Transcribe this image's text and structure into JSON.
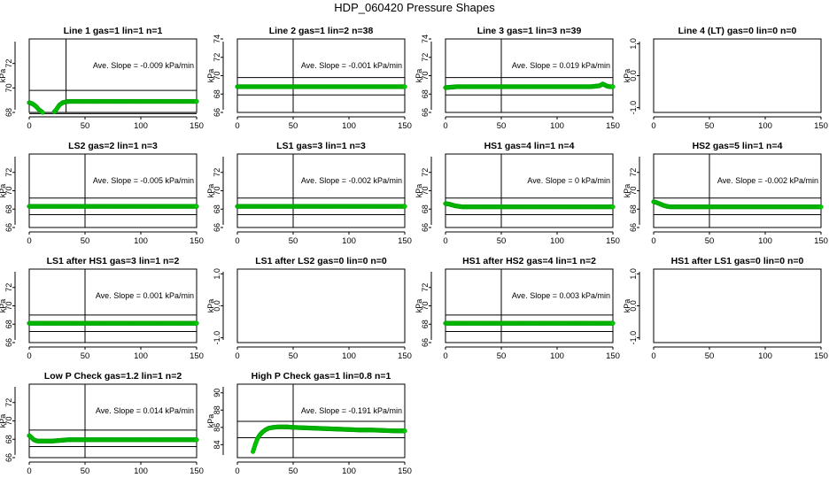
{
  "title": "HDP_060420  Pressure Shapes",
  "colors": {
    "data": "#00cc00",
    "axis": "#000000"
  },
  "chart_data": [
    {
      "type": "line",
      "title": "Line 1 gas=1 lin=1 n=1",
      "ylabel": "kPa",
      "xlim": [
        0,
        150
      ],
      "ylim": [
        68,
        74
      ],
      "yticks": [
        "68",
        "70",
        "72"
      ],
      "xticks": [
        "0",
        "50",
        "100",
        "150"
      ],
      "slope_text": "Ave. Slope =  -0.009  kPa/min",
      "hlines": [
        69.8,
        67.9
      ],
      "vline": 33,
      "series": {
        "x": [
          0,
          3,
          6,
          9,
          12,
          15,
          18,
          21,
          24,
          27,
          30,
          35,
          40,
          50,
          60,
          70,
          80,
          90,
          100,
          110,
          120,
          130,
          140,
          150
        ],
        "y": [
          68.8,
          68.7,
          68.5,
          68.2,
          68.0,
          67.9,
          67.9,
          67.9,
          68.2,
          68.6,
          68.8,
          68.9,
          68.9,
          68.9,
          68.9,
          68.9,
          68.9,
          68.9,
          68.9,
          68.9,
          68.9,
          68.9,
          68.9,
          68.9
        ]
      }
    },
    {
      "type": "line",
      "title": "Line 2 gas=1 lin=2 n=38",
      "ylabel": "kPa",
      "xlim": [
        0,
        150
      ],
      "ylim": [
        66,
        74
      ],
      "yticks": [
        "66",
        "68",
        "70",
        "72",
        "74"
      ],
      "xticks": [
        "0",
        "50",
        "100",
        "150"
      ],
      "slope_text": "Ave. Slope =  -0.001  kPa/min",
      "hlines": [
        69.8,
        67.9
      ],
      "vline": 50,
      "series": {
        "x": [
          0,
          10,
          20,
          30,
          40,
          50,
          60,
          70,
          80,
          90,
          100,
          110,
          120,
          130,
          140,
          150
        ],
        "y": [
          68.8,
          68.8,
          68.8,
          68.8,
          68.8,
          68.8,
          68.8,
          68.8,
          68.8,
          68.8,
          68.8,
          68.8,
          68.8,
          68.8,
          68.8,
          68.8
        ]
      }
    },
    {
      "type": "line",
      "title": "Line 3 gas=1 lin=3 n=39",
      "ylabel": "kPa",
      "xlim": [
        0,
        150
      ],
      "ylim": [
        66,
        74
      ],
      "yticks": [
        "66",
        "68",
        "70",
        "72",
        "74"
      ],
      "xticks": [
        "0",
        "50",
        "100",
        "150"
      ],
      "slope_text": "Ave. Slope =  0.019  kPa/min",
      "hlines": [
        69.8,
        67.9
      ],
      "vline": 50,
      "series": {
        "x": [
          0,
          10,
          20,
          30,
          40,
          50,
          60,
          70,
          80,
          90,
          100,
          110,
          120,
          130,
          138,
          141,
          144,
          147,
          150
        ],
        "y": [
          68.7,
          68.8,
          68.8,
          68.8,
          68.8,
          68.8,
          68.8,
          68.8,
          68.8,
          68.8,
          68.8,
          68.8,
          68.8,
          68.8,
          68.9,
          69.1,
          68.9,
          68.8,
          68.8
        ]
      }
    },
    {
      "type": "line",
      "title": "Line 4 (LT) gas=0 lin=0 n=0",
      "ylabel": "kPa",
      "xlim": [
        0,
        150
      ],
      "ylim": [
        -1.15,
        1.15
      ],
      "yticks": [
        "-1.0",
        "0.0",
        "1.0"
      ],
      "xticks": [
        "0",
        "50",
        "100",
        "150"
      ],
      "slope_text": "",
      "hlines": [],
      "vline": null,
      "series": {
        "x": [],
        "y": []
      }
    },
    {
      "type": "line",
      "title": "LS2 gas=2 lin=1 n=3",
      "ylabel": "kPa",
      "xlim": [
        0,
        150
      ],
      "ylim": [
        66,
        74
      ],
      "yticks": [
        "66",
        "68",
        "70",
        "72"
      ],
      "xticks": [
        "0",
        "50",
        "100",
        "150"
      ],
      "slope_text": "Ave. Slope =  -0.005  kPa/min",
      "hlines": [
        69.2,
        67.4
      ],
      "vline": 50,
      "series": {
        "x": [
          0,
          10,
          20,
          30,
          40,
          50,
          60,
          70,
          80,
          90,
          100,
          110,
          120,
          130,
          140,
          150
        ],
        "y": [
          68.3,
          68.3,
          68.3,
          68.3,
          68.3,
          68.3,
          68.3,
          68.3,
          68.3,
          68.3,
          68.3,
          68.3,
          68.3,
          68.3,
          68.3,
          68.3
        ]
      }
    },
    {
      "type": "line",
      "title": "LS1 gas=3 lin=1 n=3",
      "ylabel": "kPa",
      "xlim": [
        0,
        150
      ],
      "ylim": [
        66,
        74
      ],
      "yticks": [
        "66",
        "68",
        "70",
        "72"
      ],
      "xticks": [
        "0",
        "50",
        "100",
        "150"
      ],
      "slope_text": "Ave. Slope =  -0.002  kPa/min",
      "hlines": [
        69.2,
        67.4
      ],
      "vline": 50,
      "series": {
        "x": [
          0,
          10,
          20,
          30,
          40,
          50,
          60,
          70,
          80,
          90,
          100,
          110,
          120,
          130,
          140,
          150
        ],
        "y": [
          68.3,
          68.3,
          68.3,
          68.3,
          68.3,
          68.3,
          68.3,
          68.3,
          68.3,
          68.3,
          68.3,
          68.3,
          68.3,
          68.3,
          68.3,
          68.3
        ]
      }
    },
    {
      "type": "line",
      "title": "HS1 gas=4 lin=1 n=4",
      "ylabel": "kPa",
      "xlim": [
        0,
        150
      ],
      "ylim": [
        66,
        74
      ],
      "yticks": [
        "66",
        "68",
        "70",
        "72"
      ],
      "xticks": [
        "0",
        "50",
        "100",
        "150"
      ],
      "slope_text": "Ave. Slope =  0  kPa/min",
      "hlines": [
        69.2,
        67.4
      ],
      "vline": 50,
      "series": {
        "x": [
          0,
          3,
          6,
          9,
          12,
          15,
          20,
          30,
          40,
          50,
          60,
          70,
          80,
          90,
          100,
          110,
          120,
          130,
          140,
          150
        ],
        "y": [
          68.6,
          68.55,
          68.45,
          68.35,
          68.3,
          68.25,
          68.25,
          68.25,
          68.25,
          68.25,
          68.25,
          68.25,
          68.25,
          68.25,
          68.25,
          68.25,
          68.25,
          68.25,
          68.25,
          68.25
        ]
      }
    },
    {
      "type": "line",
      "title": "HS2 gas=5 lin=1 n=4",
      "ylabel": "kPa",
      "xlim": [
        0,
        150
      ],
      "ylim": [
        66,
        74
      ],
      "yticks": [
        "66",
        "68",
        "70",
        "72"
      ],
      "xticks": [
        "0",
        "50",
        "100",
        "150"
      ],
      "slope_text": "Ave. Slope =  -0.002  kPa/min",
      "hlines": [
        69.2,
        67.4
      ],
      "vline": 50,
      "series": {
        "x": [
          0,
          3,
          6,
          9,
          12,
          15,
          20,
          30,
          40,
          50,
          60,
          70,
          80,
          90,
          100,
          110,
          120,
          130,
          140,
          150
        ],
        "y": [
          68.8,
          68.7,
          68.55,
          68.4,
          68.3,
          68.25,
          68.25,
          68.25,
          68.25,
          68.25,
          68.25,
          68.25,
          68.25,
          68.25,
          68.25,
          68.25,
          68.25,
          68.25,
          68.25,
          68.25
        ]
      }
    },
    {
      "type": "line",
      "title": "LS1 after HS1 gas=3 lin=1 n=2",
      "ylabel": "kPa",
      "xlim": [
        0,
        150
      ],
      "ylim": [
        66,
        74
      ],
      "yticks": [
        "66",
        "68",
        "70",
        "72"
      ],
      "xticks": [
        "0",
        "50",
        "100",
        "150"
      ],
      "slope_text": "Ave. Slope =  0.001  kPa/min",
      "hlines": [
        69.0,
        67.2
      ],
      "vline": 50,
      "series": {
        "x": [
          0,
          10,
          20,
          30,
          40,
          50,
          60,
          70,
          80,
          90,
          100,
          110,
          120,
          130,
          140,
          150
        ],
        "y": [
          68.1,
          68.1,
          68.1,
          68.1,
          68.1,
          68.1,
          68.1,
          68.1,
          68.1,
          68.1,
          68.1,
          68.1,
          68.1,
          68.1,
          68.1,
          68.1
        ]
      }
    },
    {
      "type": "line",
      "title": "LS1 after LS2 gas=0 lin=0 n=0",
      "ylabel": "kPa",
      "xlim": [
        0,
        150
      ],
      "ylim": [
        -1.15,
        1.15
      ],
      "yticks": [
        "-1.0",
        "0.0",
        "1.0"
      ],
      "xticks": [
        "0",
        "50",
        "100",
        "150"
      ],
      "slope_text": "",
      "hlines": [],
      "vline": null,
      "series": {
        "x": [],
        "y": []
      }
    },
    {
      "type": "line",
      "title": "HS1 after HS2 gas=4 lin=1 n=2",
      "ylabel": "kPa",
      "xlim": [
        0,
        150
      ],
      "ylim": [
        66,
        74
      ],
      "yticks": [
        "66",
        "68",
        "70",
        "72"
      ],
      "xticks": [
        "0",
        "50",
        "100",
        "150"
      ],
      "slope_text": "Ave. Slope =  0.003  kPa/min",
      "hlines": [
        69.0,
        67.2
      ],
      "vline": 50,
      "series": {
        "x": [
          0,
          10,
          20,
          30,
          40,
          50,
          60,
          70,
          80,
          90,
          100,
          110,
          120,
          130,
          140,
          150
        ],
        "y": [
          68.1,
          68.1,
          68.1,
          68.1,
          68.1,
          68.1,
          68.1,
          68.1,
          68.1,
          68.1,
          68.1,
          68.1,
          68.1,
          68.1,
          68.1,
          68.1
        ]
      }
    },
    {
      "type": "line",
      "title": "HS1 after LS1 gas=0 lin=0 n=0",
      "ylabel": "kPa",
      "xlim": [
        0,
        150
      ],
      "ylim": [
        -1.15,
        1.15
      ],
      "yticks": [
        "-1.0",
        "0.0",
        "1.0"
      ],
      "xticks": [
        "0",
        "50",
        "100",
        "150"
      ],
      "slope_text": "",
      "hlines": [],
      "vline": null,
      "series": {
        "x": [],
        "y": []
      }
    },
    {
      "type": "line",
      "title": "Low P Check gas=1.2 lin=1 n=2",
      "ylabel": "kPa",
      "xlim": [
        0,
        150
      ],
      "ylim": [
        66,
        74
      ],
      "yticks": [
        "66",
        "68",
        "70",
        "72"
      ],
      "xticks": [
        "0",
        "50",
        "100",
        "150"
      ],
      "slope_text": "Ave. Slope =  0.014  kPa/min",
      "hlines": [
        69.0,
        67.2
      ],
      "vline": 50,
      "series": {
        "x": [
          0,
          2,
          4,
          6,
          8,
          10,
          15,
          20,
          25,
          30,
          35,
          40,
          50,
          60,
          70,
          80,
          90,
          100,
          110,
          120,
          130,
          140,
          150
        ],
        "y": [
          68.4,
          68.2,
          67.95,
          67.85,
          67.8,
          67.8,
          67.8,
          67.8,
          67.85,
          67.9,
          67.95,
          67.95,
          67.95,
          67.95,
          67.95,
          67.95,
          67.95,
          67.95,
          67.95,
          67.95,
          67.95,
          67.95,
          67.95
        ]
      }
    },
    {
      "type": "line",
      "title": "High P Check gas=1 lin=0.8 n=1",
      "ylabel": "kPa",
      "xlim": [
        0,
        150
      ],
      "ylim": [
        82.5,
        91
      ],
      "yticks": [
        "84",
        "86",
        "88",
        "90"
      ],
      "xticks": [
        "0",
        "50",
        "100",
        "150"
      ],
      "slope_text": "Ave. Slope =  -0.191  kPa/min",
      "hlines": [
        86.7,
        84.8
      ],
      "vline": 50,
      "series": {
        "x": [
          14,
          16,
          18,
          20,
          22,
          25,
          28,
          32,
          36,
          40,
          45,
          50,
          60,
          70,
          80,
          90,
          100,
          110,
          120,
          130,
          140,
          150
        ],
        "y": [
          83.2,
          84.0,
          84.7,
          85.1,
          85.4,
          85.7,
          85.9,
          86.0,
          86.05,
          86.05,
          86.05,
          86.0,
          85.95,
          85.9,
          85.85,
          85.8,
          85.75,
          85.7,
          85.7,
          85.65,
          85.6,
          85.6
        ]
      }
    }
  ]
}
